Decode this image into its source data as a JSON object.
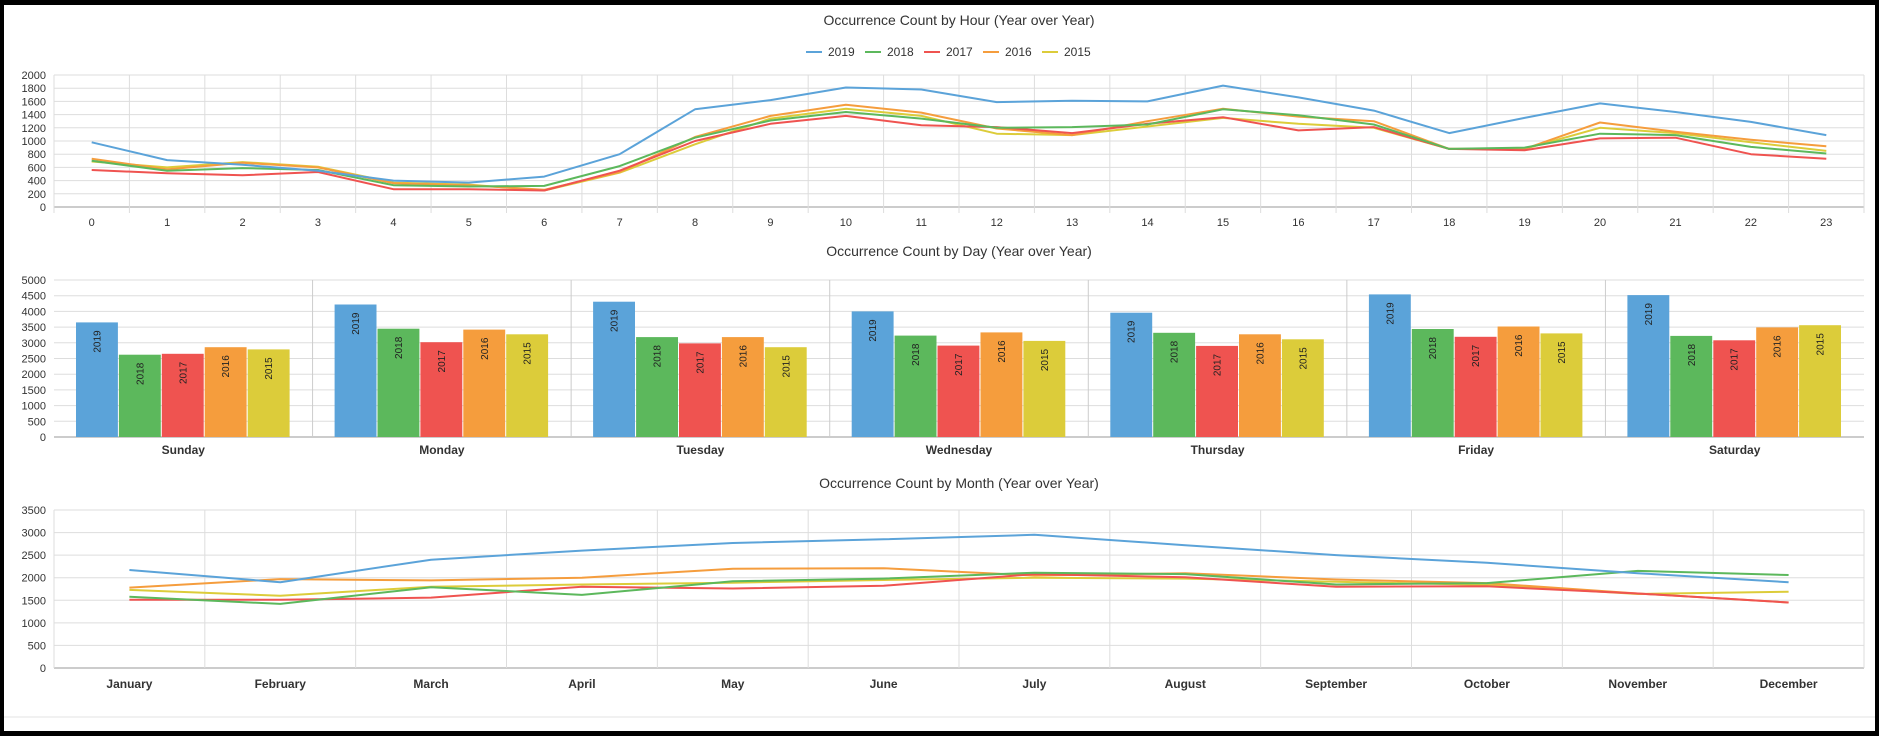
{
  "colors": {
    "2019": "#5ba3d9",
    "2018": "#5cb85c",
    "2017": "#ef5350",
    "2016": "#f59d3d",
    "2015": "#dccc3a"
  },
  "chart_data": [
    {
      "type": "line",
      "title": "Occurrence Count by Hour (Year over Year)",
      "categories": [
        "0",
        "1",
        "2",
        "3",
        "4",
        "5",
        "6",
        "7",
        "8",
        "9",
        "10",
        "11",
        "12",
        "13",
        "14",
        "15",
        "16",
        "17",
        "18",
        "19",
        "20",
        "21",
        "22",
        "23"
      ],
      "ylim": [
        0,
        2000
      ],
      "yticks": [
        0,
        200,
        400,
        600,
        800,
        1000,
        1200,
        1400,
        1600,
        1800,
        2000
      ],
      "legend": "top",
      "series": [
        {
          "name": "2019",
          "values": [
            980,
            710,
            640,
            550,
            400,
            370,
            460,
            800,
            1480,
            1620,
            1810,
            1780,
            1590,
            1610,
            1600,
            1840,
            1660,
            1460,
            1120,
            1350,
            1570,
            1440,
            1290,
            1090
          ]
        },
        {
          "name": "2018",
          "values": [
            700,
            550,
            590,
            560,
            330,
            310,
            320,
            620,
            1050,
            1310,
            1440,
            1340,
            1200,
            1210,
            1250,
            1480,
            1390,
            1250,
            880,
            900,
            1110,
            1090,
            910,
            810
          ]
        },
        {
          "name": "2017",
          "values": [
            560,
            510,
            480,
            530,
            270,
            270,
            250,
            550,
            1000,
            1260,
            1380,
            1240,
            1210,
            1120,
            1260,
            1360,
            1160,
            1210,
            880,
            860,
            1040,
            1050,
            800,
            730
          ]
        },
        {
          "name": "2016",
          "values": [
            730,
            570,
            670,
            600,
            360,
            330,
            260,
            530,
            1060,
            1380,
            1550,
            1430,
            1190,
            1090,
            1300,
            1490,
            1370,
            1300,
            880,
            880,
            1280,
            1140,
            1020,
            920
          ]
        },
        {
          "name": "2015",
          "values": [
            690,
            600,
            680,
            610,
            370,
            340,
            250,
            520,
            950,
            1340,
            1490,
            1380,
            1110,
            1090,
            1220,
            1350,
            1260,
            1200,
            880,
            880,
            1200,
            1120,
            980,
            850
          ]
        }
      ]
    },
    {
      "type": "bar",
      "title": "Occurrence Count by Day (Year over Year)",
      "categories": [
        "Sunday",
        "Monday",
        "Tuesday",
        "Wednesday",
        "Thursday",
        "Friday",
        "Saturday"
      ],
      "ylim": [
        0,
        5000
      ],
      "yticks": [
        0,
        500,
        1000,
        1500,
        2000,
        2500,
        3000,
        3500,
        4000,
        4500,
        5000
      ],
      "series": [
        {
          "name": "2019",
          "values": [
            3650,
            4220,
            4310,
            4000,
            3960,
            4540,
            4520
          ]
        },
        {
          "name": "2018",
          "values": [
            2620,
            3450,
            3180,
            3230,
            3320,
            3440,
            3220
          ]
        },
        {
          "name": "2017",
          "values": [
            2650,
            3020,
            2980,
            2910,
            2900,
            3190,
            3080
          ]
        },
        {
          "name": "2016",
          "values": [
            2860,
            3420,
            3180,
            3330,
            3270,
            3520,
            3490
          ]
        },
        {
          "name": "2015",
          "values": [
            2790,
            3270,
            2860,
            3060,
            3110,
            3300,
            3560
          ]
        }
      ]
    },
    {
      "type": "line",
      "title": "Occurrence Count by Month (Year over Year)",
      "categories": [
        "January",
        "February",
        "March",
        "April",
        "May",
        "June",
        "July",
        "August",
        "September",
        "October",
        "November",
        "December"
      ],
      "ylim": [
        0,
        3500
      ],
      "yticks": [
        0,
        500,
        1000,
        1500,
        2000,
        2500,
        3000,
        3500
      ],
      "series": [
        {
          "name": "2019",
          "values": [
            2170,
            1900,
            2400,
            2600,
            2770,
            2850,
            2950,
            2720,
            2500,
            2330,
            2100,
            1900
          ]
        },
        {
          "name": "2018",
          "values": [
            1580,
            1420,
            1790,
            1620,
            1920,
            1980,
            2110,
            2080,
            1850,
            1880,
            2150,
            2060
          ]
        },
        {
          "name": "2017",
          "values": [
            1510,
            1510,
            1560,
            1800,
            1760,
            1820,
            2080,
            2010,
            1800,
            1810,
            1650,
            1450
          ]
        },
        {
          "name": "2016",
          "values": [
            1780,
            1970,
            1940,
            2000,
            2200,
            2210,
            2050,
            2100,
            1960,
            1880,
            1650,
            1450
          ]
        },
        {
          "name": "2015",
          "values": [
            1730,
            1600,
            1800,
            1850,
            1890,
            1950,
            2000,
            1980,
            1910,
            1840,
            1640,
            1690
          ]
        }
      ]
    }
  ]
}
